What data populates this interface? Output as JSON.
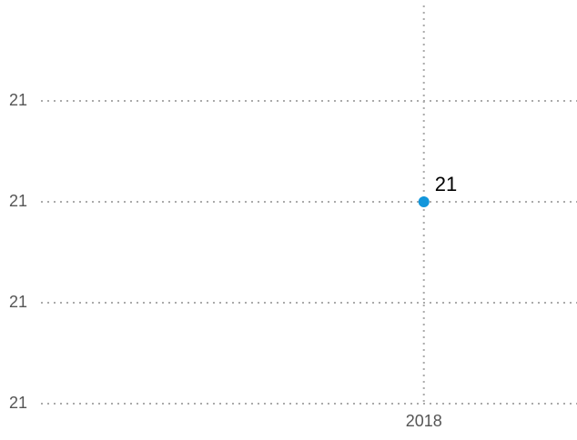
{
  "chart_data": {
    "type": "line",
    "x": [
      2018
    ],
    "series": [
      {
        "color": "#1296db",
        "values": [
          21
        ]
      }
    ],
    "xlim": [
      2015.5,
      2019
    ],
    "xticks": [
      2018
    ],
    "ylim": [
      20.8,
      21.2
    ],
    "yticks": [
      {
        "value": 20.8,
        "label": "21"
      },
      {
        "value": 20.9,
        "label": "21"
      },
      {
        "value": 21,
        "label": "21"
      },
      {
        "value": 21.1,
        "label": "21"
      }
    ],
    "grid": true,
    "data_labels": true
  }
}
